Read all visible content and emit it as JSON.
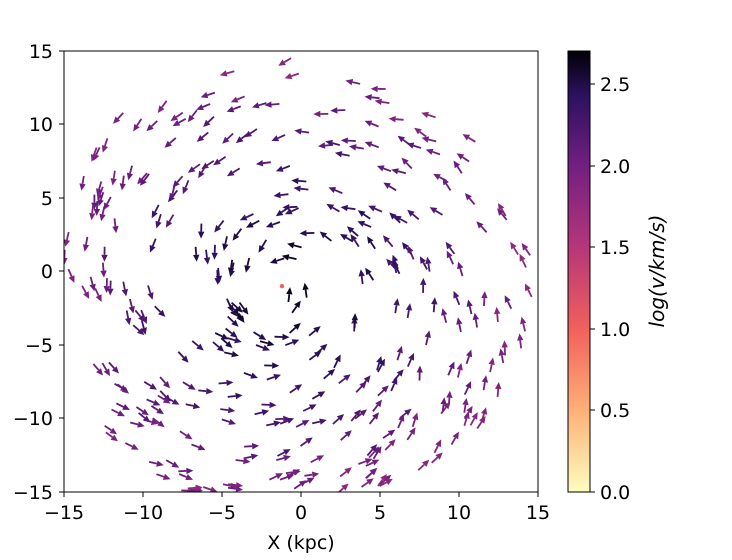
{
  "chart_data": {
    "type": "quiver",
    "title": "",
    "xlabel": "X (kpc)",
    "ylabel": "",
    "xlim": [
      -15,
      15
    ],
    "ylim": [
      -15,
      15
    ],
    "xticks": [
      "−15",
      "−10",
      "−5",
      "0",
      "5",
      "10",
      "15"
    ],
    "yticks": [
      "−15",
      "−10",
      "−5",
      "0",
      "5",
      "10",
      "15"
    ],
    "grid": false,
    "colorbar": {
      "label": "log(v/km/s)",
      "colormap": "magma_r",
      "range": [
        0,
        2.7
      ],
      "ticks": [
        "0.0",
        "0.5",
        "1.0",
        "1.5",
        "2.0",
        "2.5"
      ]
    },
    "colors": {
      "c0": "#fcfdbf",
      "c1": "#feb078",
      "c2": "#f1605d",
      "c3": "#b5367a",
      "c4": "#721f81",
      "c5": "#2c115f",
      "c6": "#000004"
    },
    "field": {
      "pattern": "rotating spiral velocity field",
      "rotation": "counter-clockwise",
      "center_kpc": [
        -1.2,
        -1.0
      ],
      "extent_kpc": 15,
      "log_v_range": [
        1.7,
        2.6
      ]
    }
  }
}
